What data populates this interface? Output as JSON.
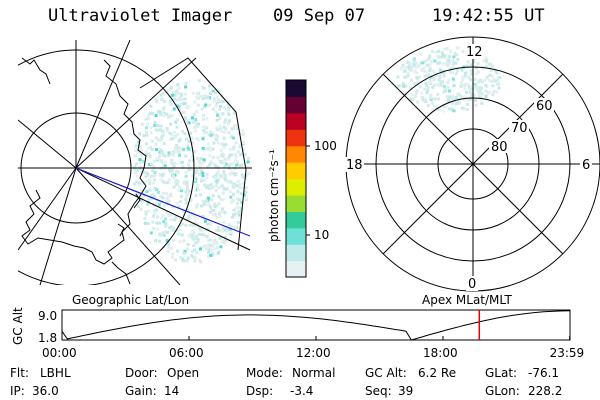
{
  "header": {
    "instrument": "Ultraviolet Imager",
    "date": "09 Sep 07",
    "time": "19:42:55 UT"
  },
  "colorbar": {
    "unit_label": "photon cm⁻²s⁻¹",
    "ticks": [
      "10",
      "100"
    ],
    "colors": [
      "#e6f2f2",
      "#bfeaea",
      "#6fe0d8",
      "#33cc99",
      "#99dd33",
      "#ddee00",
      "#ffcc00",
      "#ff8800",
      "#ee3311",
      "#bb0022",
      "#660033",
      "#1a0a33"
    ]
  },
  "left_panel": {
    "label": "Geographic Lat/Lon"
  },
  "right_panel": {
    "label": "Apex MLat/MLT",
    "mlt_labels": [
      "12",
      "18",
      "6",
      "0"
    ],
    "mlat_labels": [
      "60",
      "70",
      "80"
    ]
  },
  "altitude_plot": {
    "ylabel": "GC Alt",
    "y_ticks": [
      "9.0",
      "1.8"
    ],
    "x_ticks": [
      "00:00",
      "06:00",
      "12:00",
      "18:00",
      "23:59"
    ],
    "current_marker_hour": 19.715
  },
  "footer": {
    "row1": [
      {
        "label": "Flt:",
        "value": "LBHL"
      },
      {
        "label": "Door:",
        "value": "Open"
      },
      {
        "label": "Mode:",
        "value": "Normal"
      },
      {
        "label": "GC Alt:",
        "value": "6.2 Re"
      },
      {
        "label": "GLat:",
        "value": "-76.1"
      }
    ],
    "row2": [
      {
        "label": "IP:",
        "value": "36.0"
      },
      {
        "label": "Gain:",
        "value": "14"
      },
      {
        "label": "Dsp:",
        "value": "-3.4"
      },
      {
        "label": "Seq:",
        "value": "39"
      },
      {
        "label": "GLon:",
        "value": "228.2"
      }
    ]
  }
}
